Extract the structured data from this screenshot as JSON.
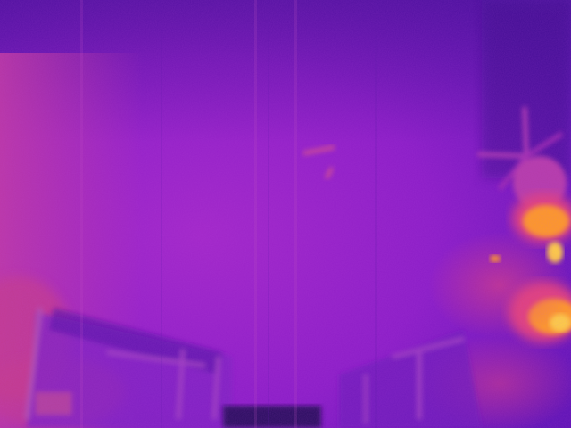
{
  "image": {
    "kind": "thermal-camera-frame",
    "palette": "ironbow",
    "colors": {
      "cold": "#2a0a5e",
      "cool": "#6a10c0",
      "mid": "#a025c8",
      "warm": "#e0407a",
      "hot": "#ff9a20",
      "hottest": "#ffd040"
    },
    "visible_text": []
  }
}
